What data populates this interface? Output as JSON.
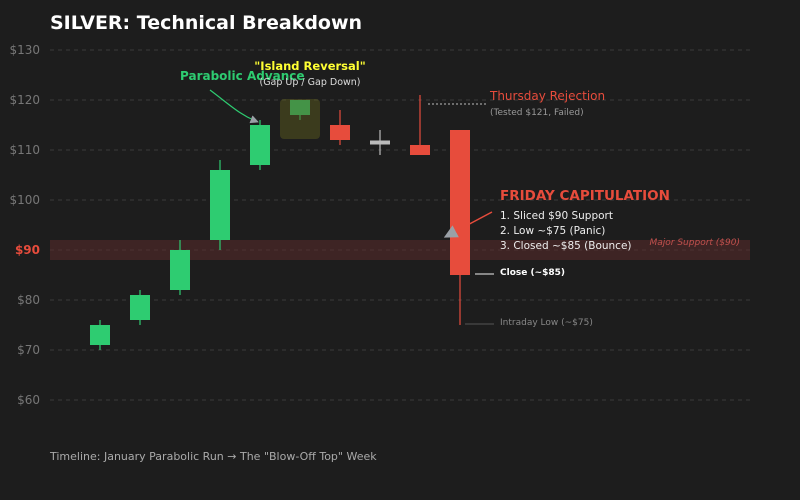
{
  "header": {
    "title": "SILVER: Technical Breakdown"
  },
  "footer": {
    "timeline": "Timeline: January Parabolic Run → The \"Blow-Off Top\" Week"
  },
  "annotations": {
    "parabolic": "Parabolic Advance",
    "island_title": "\"Island Reversal\"",
    "island_sub": "(Gap Up / Gap Down)",
    "thursday_title": "Thursday Rejection",
    "thursday_sub": "(Tested $121, Failed)",
    "friday_title": "FRIDAY CAPITULATION",
    "friday_points": [
      "1. Sliced $90 Support",
      "2. Low ~$75 (Panic)",
      "3. Closed ~$85 (Bounce)"
    ],
    "close_label": "Close (~$85)",
    "low_label": "Intraday Low (~$75)",
    "support_label": "Major Support ($90)"
  },
  "colors": {
    "background": "#1d1d1d",
    "up": "#2ecc71",
    "down": "#e74c3c",
    "neutral": "#bbbbbb",
    "support_band": "#5a2a2a",
    "annotation_green": "#2ecc71",
    "annotation_yellow": "#ffff33",
    "annotation_red": "#e74c3c"
  },
  "chart_data": {
    "type": "candlestick",
    "title": "SILVER: Technical Breakdown",
    "xlabel": "",
    "ylabel": "",
    "ylim": [
      55,
      133
    ],
    "y_ticks": [
      60,
      70,
      80,
      90,
      100,
      110,
      120,
      130
    ],
    "y_tick_labels": [
      "$60",
      "$70",
      "$80",
      "$90",
      "$100",
      "$110",
      "$120",
      "$130"
    ],
    "highlight_tick": 90,
    "grid": true,
    "support_band": {
      "from": 88,
      "to": 92,
      "label": "Major Support ($90)"
    },
    "candles": [
      {
        "open": 71,
        "high": 76,
        "low": 70,
        "close": 75
      },
      {
        "open": 76,
        "high": 82,
        "low": 75,
        "close": 81
      },
      {
        "open": 82,
        "high": 92,
        "low": 81,
        "close": 90
      },
      {
        "open": 92,
        "high": 108,
        "low": 90,
        "close": 106
      },
      {
        "open": 107,
        "high": 116,
        "low": 106,
        "close": 115
      },
      {
        "open": 117,
        "high": 120,
        "low": 116,
        "close": 120
      },
      {
        "open": 115,
        "high": 118,
        "low": 111,
        "close": 112
      },
      {
        "open": 111.5,
        "high": 114,
        "low": 109,
        "close": 111.5
      },
      {
        "open": 111,
        "high": 121,
        "low": 109,
        "close": 109
      },
      {
        "open": 114,
        "high": 114,
        "low": 75,
        "close": 85
      }
    ]
  }
}
